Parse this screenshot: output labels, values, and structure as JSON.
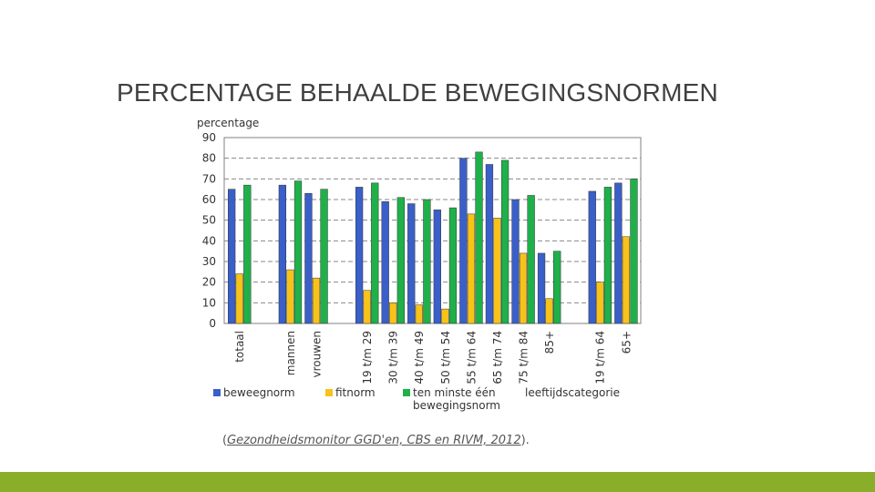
{
  "slide": {
    "title": "PERCENTAGE BEHAALDE BEWEGINGSNORMEN",
    "caption_open": "(",
    "caption_source": "Gezondheidsmonitor GGD'en, CBS en RIVM, 2012",
    "caption_close": ").",
    "footer_color": "#8aad2a"
  },
  "chart_data": {
    "type": "bar",
    "ylabel": "percentage",
    "ylim": [
      0,
      90
    ],
    "yticks": [
      0,
      10,
      20,
      30,
      40,
      50,
      60,
      70,
      80,
      90
    ],
    "grid": true,
    "categories": [
      "totaal",
      "mannen",
      "vrouwen",
      "19 t/m 29",
      "30 t/m 39",
      "40 t/m 49",
      "50 t/m 54",
      "55 t/m 64",
      "65 t/m 74",
      "75 t/m 84",
      "85+",
      "19 t/m 64",
      "65+"
    ],
    "groups": [
      {
        "label": "",
        "categories": [
          "totaal"
        ]
      },
      {
        "label": "",
        "categories": [
          "mannen",
          "vrouwen"
        ]
      },
      {
        "label": "",
        "categories": [
          "19 t/m 29",
          "30 t/m 39",
          "40 t/m 49",
          "50 t/m 54",
          "55 t/m 64",
          "65 t/m 74",
          "75 t/m 84",
          "85+"
        ]
      },
      {
        "label": "",
        "categories": [
          "19 t/m 64",
          "65+"
        ]
      }
    ],
    "series": [
      {
        "name": "beweegnorm",
        "color": "#3a5fc8",
        "values": [
          65,
          67,
          63,
          66,
          59,
          58,
          55,
          80,
          77,
          60,
          34,
          64,
          68
        ]
      },
      {
        "name": "fitnorm",
        "color": "#f7c21a",
        "values": [
          24,
          26,
          22,
          16,
          10,
          9,
          7,
          53,
          51,
          34,
          12,
          20,
          42
        ]
      },
      {
        "name": "ten minste één bewegingsnorm",
        "color": "#1fb04a",
        "values": [
          67,
          69,
          65,
          68,
          61,
          60,
          56,
          83,
          79,
          62,
          35,
          66,
          70
        ]
      }
    ],
    "legend": [
      {
        "label": "beweegnorm",
        "color": "#3a5fc8"
      },
      {
        "label": "fitnorm",
        "color": "#f7c21a"
      },
      {
        "label": "ten minste één",
        "label2": "bewegingsnorm",
        "color": "#1fb04a"
      }
    ],
    "legend_extra": "leeftijdscategorie",
    "legend_position": "bottom"
  }
}
